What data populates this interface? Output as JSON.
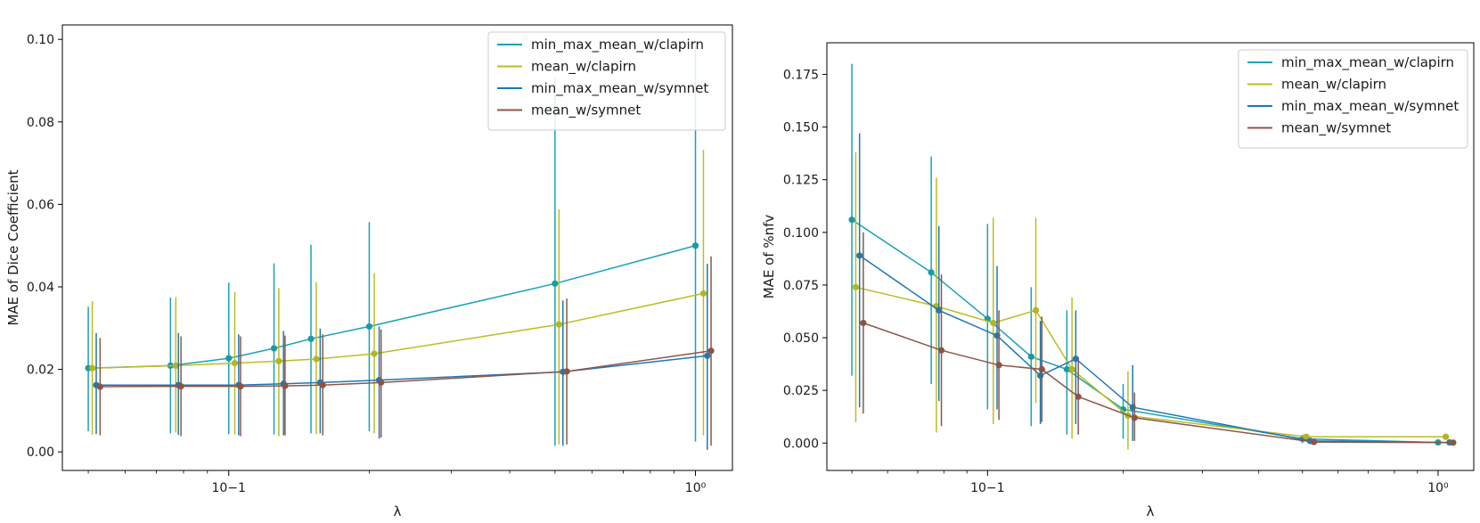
{
  "chart_data": [
    {
      "type": "line",
      "xscale": "log",
      "xlabel": "λ",
      "ylabel": "MAE of Dice Coefficient",
      "xlim": [
        0.044,
        1.2
      ],
      "ylim": [
        -0.0045,
        0.1035
      ],
      "x_ticks": [
        {
          "value": 0.1,
          "label": "10−1"
        },
        {
          "value": 1.0,
          "label": "10⁰"
        }
      ],
      "y_ticks": [
        {
          "value": 0.0,
          "label": "0.00"
        },
        {
          "value": 0.02,
          "label": "0.02"
        },
        {
          "value": 0.04,
          "label": "0.04"
        },
        {
          "value": 0.06,
          "label": "0.06"
        },
        {
          "value": 0.08,
          "label": "0.08"
        },
        {
          "value": 0.1,
          "label": "0.10"
        }
      ],
      "legend_position": "top-right",
      "series": [
        {
          "name": "min_max_mean_w/clapirn",
          "color": "#17a2b8",
          "marker": "#1a9aa6",
          "x": [
            0.05,
            0.075,
            0.1,
            0.125,
            0.15,
            0.2,
            0.5,
            1.0
          ],
          "y": [
            0.0203,
            0.0209,
            0.0227,
            0.0251,
            0.0274,
            0.0304,
            0.0408,
            0.05
          ],
          "err_low": [
            0.005,
            0.0045,
            0.0043,
            0.0042,
            0.0045,
            0.005,
            0.0015,
            0.0025
          ],
          "err_high": [
            0.0352,
            0.0374,
            0.041,
            0.0457,
            0.0502,
            0.0557,
            0.0905,
            0.0985
          ]
        },
        {
          "name": "mean_w/clapirn",
          "color": "#bcbd22",
          "marker": "#b5b51e",
          "x": [
            0.051,
            0.077,
            0.103,
            0.128,
            0.154,
            0.205,
            0.51,
            1.04
          ],
          "y": [
            0.0203,
            0.0209,
            0.0215,
            0.022,
            0.0225,
            0.0238,
            0.0309,
            0.0384
          ],
          "err_low": [
            0.0042,
            0.0047,
            0.0042,
            0.0038,
            0.0043,
            0.0045,
            0.0018,
            0.004
          ],
          "err_high": [
            0.0365,
            0.0375,
            0.0387,
            0.0397,
            0.0411,
            0.0433,
            0.0588,
            0.0732
          ]
        },
        {
          "name": "min_max_mean_w/symnet",
          "color": "#1f77b4",
          "marker": "#2279b2",
          "x": [
            0.052,
            0.078,
            0.105,
            0.131,
            0.157,
            0.21,
            0.52,
            1.06
          ],
          "y": [
            0.0162,
            0.0162,
            0.0162,
            0.0165,
            0.0168,
            0.0174,
            0.0194,
            0.0233
          ],
          "err_low": [
            0.0043,
            0.0041,
            0.004,
            0.004,
            0.0045,
            0.0032,
            0.0015,
            0.0005
          ],
          "err_high": [
            0.0288,
            0.0288,
            0.0285,
            0.0293,
            0.0299,
            0.0304,
            0.0367,
            0.0456
          ]
        },
        {
          "name": "mean_w/symnet",
          "color": "#8c564b",
          "marker": "#8b5446",
          "x": [
            0.053,
            0.079,
            0.106,
            0.132,
            0.159,
            0.212,
            0.53,
            1.08
          ],
          "y": [
            0.0158,
            0.0159,
            0.0159,
            0.016,
            0.0162,
            0.0168,
            0.0195,
            0.0245
          ],
          "err_low": [
            0.004,
            0.0038,
            0.0038,
            0.004,
            0.004,
            0.0035,
            0.0018,
            0.0015
          ],
          "err_high": [
            0.0276,
            0.028,
            0.028,
            0.0282,
            0.0285,
            0.0297,
            0.0372,
            0.0474
          ]
        }
      ]
    },
    {
      "type": "line",
      "xscale": "log",
      "xlabel": "λ",
      "ylabel": "MAE of %nfv",
      "xlim": [
        0.044,
        1.2
      ],
      "ylim": [
        -0.013,
        0.19
      ],
      "x_ticks": [
        {
          "value": 0.1,
          "label": "10−1"
        },
        {
          "value": 1.0,
          "label": "10⁰"
        }
      ],
      "y_ticks": [
        {
          "value": 0.0,
          "label": "0.000"
        },
        {
          "value": 0.025,
          "label": "0.025"
        },
        {
          "value": 0.05,
          "label": "0.050"
        },
        {
          "value": 0.075,
          "label": "0.075"
        },
        {
          "value": 0.1,
          "label": "0.100"
        },
        {
          "value": 0.125,
          "label": "0.125"
        },
        {
          "value": 0.15,
          "label": "0.150"
        },
        {
          "value": 0.175,
          "label": "0.175"
        }
      ],
      "legend_position": "top-right",
      "series": [
        {
          "name": "min_max_mean_w/clapirn",
          "color": "#17a2b8",
          "marker": "#1a9aa6",
          "x": [
            0.05,
            0.075,
            0.1,
            0.125,
            0.15,
            0.2,
            0.5,
            1.0
          ],
          "y": [
            0.106,
            0.081,
            0.059,
            0.041,
            0.035,
            0.016,
            0.002,
            0.0003
          ],
          "err_low": [
            0.032,
            0.028,
            0.016,
            0.008,
            0.004,
            0.002,
            0.0,
            0.0
          ],
          "err_high": [
            0.18,
            0.136,
            0.104,
            0.074,
            0.063,
            0.028,
            0.004,
            0.0006
          ]
        },
        {
          "name": "mean_w/clapirn",
          "color": "#bcbd22",
          "marker": "#b5b51e",
          "x": [
            0.051,
            0.077,
            0.103,
            0.128,
            0.154,
            0.205,
            0.51,
            1.04
          ],
          "y": [
            0.074,
            0.065,
            0.057,
            0.063,
            0.035,
            0.013,
            0.003,
            0.003
          ],
          "err_low": [
            0.01,
            0.005,
            0.009,
            0.019,
            0.002,
            -0.003,
            0.002,
            0.002
          ],
          "err_high": [
            0.138,
            0.126,
            0.107,
            0.107,
            0.069,
            0.034,
            0.004,
            0.004
          ]
        },
        {
          "name": "min_max_mean_w/symnet",
          "color": "#1f77b4",
          "marker": "#2279b2",
          "x": [
            0.052,
            0.078,
            0.105,
            0.131,
            0.157,
            0.21,
            0.52,
            1.06
          ],
          "y": [
            0.089,
            0.063,
            0.051,
            0.032,
            0.04,
            0.017,
            0.001,
            0.0003
          ],
          "err_low": [
            0.017,
            0.02,
            0.016,
            0.009,
            0.009,
            0.001,
            0.0,
            0.0
          ],
          "err_high": [
            0.147,
            0.103,
            0.084,
            0.058,
            0.063,
            0.037,
            0.002,
            0.0006
          ]
        },
        {
          "name": "mean_w/symnet",
          "color": "#8c564b",
          "marker": "#8b5446",
          "x": [
            0.053,
            0.079,
            0.106,
            0.132,
            0.159,
            0.212,
            0.53,
            1.08
          ],
          "y": [
            0.057,
            0.044,
            0.037,
            0.035,
            0.022,
            0.012,
            0.0005,
            0.0002
          ],
          "err_low": [
            0.014,
            0.008,
            0.011,
            0.01,
            0.004,
            0.001,
            0.0,
            0.0
          ],
          "err_high": [
            0.1,
            0.08,
            0.063,
            0.06,
            0.04,
            0.024,
            0.001,
            0.0004
          ]
        }
      ]
    }
  ]
}
